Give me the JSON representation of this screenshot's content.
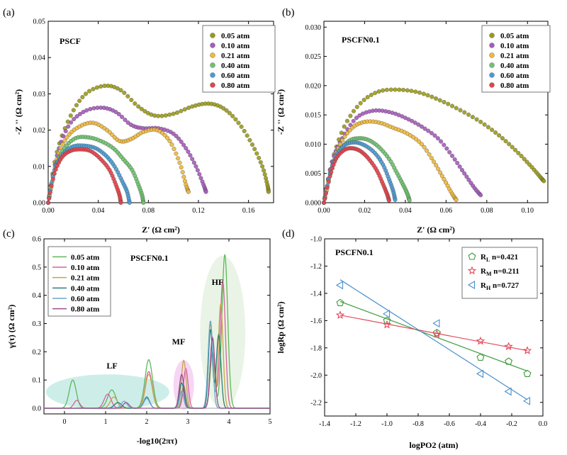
{
  "chart_data": [
    {
      "panel": "(a)",
      "type": "scatter",
      "title": "PSCF",
      "xlabel": "Z'  (Ω cm²)",
      "ylabel": "-Z ''  (Ω cm²)",
      "xlim": [
        0,
        0.18
      ],
      "ylim": [
        0,
        0.05
      ],
      "xticks": [
        0.0,
        0.04,
        0.08,
        0.12,
        0.16
      ],
      "xtick_labels": [
        "0.00",
        "0.04",
        "0.08",
        "0.12",
        "0.16"
      ],
      "yticks": [
        0.0,
        0.01,
        0.02,
        0.03,
        0.04,
        0.05
      ],
      "ytick_labels": [
        "0.00",
        "0.01",
        "0.02",
        "0.03",
        "0.04",
        "0.05"
      ],
      "legend": "top-right",
      "series": [
        {
          "name": "0.05 atm",
          "color": "#9b9b16",
          "x": [
            0.0,
            0.007,
            0.018,
            0.03,
            0.045,
            0.058,
            0.072,
            0.085,
            0.1,
            0.115,
            0.128,
            0.14,
            0.152,
            0.163,
            0.171,
            0.175,
            0.176
          ],
          "y": [
            0.0,
            0.014,
            0.024,
            0.03,
            0.0322,
            0.031,
            0.0265,
            0.024,
            0.0245,
            0.0265,
            0.0273,
            0.026,
            0.022,
            0.016,
            0.01,
            0.005,
            0.003
          ]
        },
        {
          "name": "0.10 atm",
          "color": "#a65bbd",
          "x": [
            0.0,
            0.007,
            0.016,
            0.028,
            0.042,
            0.054,
            0.066,
            0.076,
            0.088,
            0.1,
            0.11,
            0.118,
            0.124,
            0.126
          ],
          "y": [
            0.0,
            0.013,
            0.021,
            0.025,
            0.0262,
            0.025,
            0.0215,
            0.0205,
            0.0205,
            0.019,
            0.015,
            0.01,
            0.005,
            0.003
          ]
        },
        {
          "name": "0.21 atm",
          "color": "#f0b83a",
          "x": [
            0.0,
            0.007,
            0.015,
            0.025,
            0.036,
            0.047,
            0.057,
            0.066,
            0.076,
            0.087,
            0.097,
            0.105,
            0.11,
            0.112
          ],
          "y": [
            0.0,
            0.012,
            0.018,
            0.021,
            0.022,
            0.02,
            0.017,
            0.0175,
            0.0195,
            0.02,
            0.017,
            0.011,
            0.005,
            0.003
          ]
        },
        {
          "name": "0.40 atm",
          "color": "#6ec36e",
          "x": [
            0.0,
            0.006,
            0.013,
            0.022,
            0.032,
            0.042,
            0.052,
            0.06,
            0.067,
            0.072,
            0.075,
            0.076
          ],
          "y": [
            0.0,
            0.01,
            0.015,
            0.0178,
            0.018,
            0.017,
            0.015,
            0.012,
            0.009,
            0.005,
            0.002,
            0.0
          ]
        },
        {
          "name": "0.60 atm",
          "color": "#4b9bd4",
          "x": [
            0.0,
            0.005,
            0.012,
            0.02,
            0.029,
            0.038,
            0.046,
            0.053,
            0.059,
            0.063,
            0.065
          ],
          "y": [
            0.0,
            0.009,
            0.0135,
            0.0155,
            0.0157,
            0.015,
            0.013,
            0.01,
            0.006,
            0.003,
            0.0
          ]
        },
        {
          "name": "0.80 atm",
          "color": "#e8424a",
          "x": [
            0.0,
            0.005,
            0.011,
            0.018,
            0.026,
            0.034,
            0.042,
            0.049,
            0.054,
            0.057,
            0.058
          ],
          "y": [
            0.0,
            0.008,
            0.0125,
            0.0143,
            0.0147,
            0.0142,
            0.012,
            0.009,
            0.005,
            0.002,
            0.0
          ]
        }
      ]
    },
    {
      "panel": "(b)",
      "type": "scatter",
      "title": "PSCFN0.1",
      "xlabel": "Z'  (Ω cm²)",
      "ylabel": "-Z ''  (Ω cm²)",
      "xlim": [
        0,
        0.11
      ],
      "ylim": [
        0,
        0.031
      ],
      "xticks": [
        0.0,
        0.02,
        0.04,
        0.06,
        0.08,
        0.1
      ],
      "xtick_labels": [
        "0.00",
        "0.02",
        "0.04",
        "0.06",
        "0.08",
        "0.10"
      ],
      "yticks": [
        0.0,
        0.005,
        0.01,
        0.015,
        0.02,
        0.025,
        0.03
      ],
      "ytick_labels": [
        "0.000",
        "0.005",
        "0.010",
        "0.015",
        "0.020",
        "0.025",
        "0.030"
      ],
      "legend": "top-right",
      "series": [
        {
          "name": "0.05 atm",
          "color": "#9b9b16",
          "x": [
            0.0,
            0.004,
            0.01,
            0.018,
            0.027,
            0.037,
            0.047,
            0.057,
            0.067,
            0.077,
            0.086,
            0.094,
            0.101,
            0.106,
            0.108
          ],
          "y": [
            0.0,
            0.007,
            0.013,
            0.017,
            0.019,
            0.0193,
            0.0188,
            0.0175,
            0.0158,
            0.0138,
            0.0115,
            0.009,
            0.0065,
            0.0045,
            0.0037
          ]
        },
        {
          "name": "0.10 atm",
          "color": "#a65bbd",
          "x": [
            0.0,
            0.004,
            0.009,
            0.016,
            0.024,
            0.032,
            0.04,
            0.048,
            0.056,
            0.063,
            0.069,
            0.074,
            0.077
          ],
          "y": [
            0.0,
            0.007,
            0.011,
            0.0145,
            0.0157,
            0.0155,
            0.0145,
            0.013,
            0.011,
            0.008,
            0.005,
            0.0025,
            0.0013
          ]
        },
        {
          "name": "0.21 atm",
          "color": "#f0b83a",
          "x": [
            0.0,
            0.004,
            0.008,
            0.014,
            0.02,
            0.027,
            0.034,
            0.041,
            0.048,
            0.054,
            0.059,
            0.063,
            0.065
          ],
          "y": [
            0.0,
            0.006,
            0.01,
            0.0128,
            0.0138,
            0.0137,
            0.0128,
            0.0118,
            0.01,
            0.007,
            0.004,
            0.0015,
            0.0005
          ]
        },
        {
          "name": "0.40 atm",
          "color": "#6ec36e",
          "x": [
            0.0,
            0.003,
            0.007,
            0.012,
            0.017,
            0.022,
            0.027,
            0.032,
            0.036,
            0.039,
            0.041,
            0.042
          ],
          "y": [
            0.0,
            0.005,
            0.0085,
            0.0105,
            0.011,
            0.0107,
            0.0095,
            0.0075,
            0.005,
            0.003,
            0.0015,
            0.0004
          ]
        },
        {
          "name": "0.60 atm",
          "color": "#4b9bd4",
          "x": [
            0.0,
            0.003,
            0.006,
            0.01,
            0.015,
            0.02,
            0.025,
            0.029,
            0.032,
            0.034,
            0.035
          ],
          "y": [
            0.0,
            0.005,
            0.008,
            0.0098,
            0.0103,
            0.0098,
            0.0085,
            0.0065,
            0.004,
            0.002,
            0.0005
          ]
        },
        {
          "name": "0.80 atm",
          "color": "#e8424a",
          "x": [
            0.0,
            0.003,
            0.006,
            0.01,
            0.014,
            0.018,
            0.022,
            0.026,
            0.029,
            0.031,
            0.032
          ],
          "y": [
            0.0,
            0.0045,
            0.0075,
            0.009,
            0.0093,
            0.0088,
            0.0075,
            0.0055,
            0.0032,
            0.0015,
            0.0004
          ]
        }
      ]
    },
    {
      "panel": "(c)",
      "type": "line",
      "title": "PSCFN0.1",
      "xlabel": "-log10(2πτ)",
      "ylabel": "γ(τ)  (Ω  cm²)",
      "xlim": [
        -0.5,
        5
      ],
      "ylim": [
        -0.02,
        0.6
      ],
      "xticks": [
        0,
        1,
        2,
        3,
        4,
        5
      ],
      "xtick_labels": [
        "0",
        "1",
        "2",
        "3",
        "4",
        "5"
      ],
      "yticks": [
        0.0,
        0.1,
        0.2,
        0.3,
        0.4,
        0.5,
        0.6
      ],
      "ytick_labels": [
        "0.0",
        "0.1",
        "0.2",
        "0.3",
        "0.4",
        "0.5",
        "0.6"
      ],
      "legend": "top-left",
      "regions": [
        {
          "label": "LF",
          "x_range": [
            -0.45,
            2.55
          ],
          "y_range": [
            -0.005,
            0.12
          ],
          "color": "#b8e6e0"
        },
        {
          "label": "MF",
          "x_range": [
            2.65,
            3.15
          ],
          "y_range": [
            -0.005,
            0.17
          ],
          "color": "#f2c4f0"
        },
        {
          "label": "HF",
          "x_range": [
            3.3,
            4.4
          ],
          "y_range": [
            -0.005,
            0.54
          ],
          "color": "#dff0dc"
        }
      ],
      "series": [
        {
          "name": "0.05 atm",
          "color": "#5fb85a",
          "peaks": [
            [
              0.2,
              0.1,
              0.12
            ],
            [
              1.15,
              0.065,
              0.14
            ],
            [
              2.05,
              0.172,
              0.13
            ],
            [
              2.9,
              0.08,
              0.07
            ],
            [
              3.6,
              0.2,
              0.08
            ],
            [
              3.9,
              0.545,
              0.1
            ]
          ]
        },
        {
          "name": "0.10 atm",
          "color": "#d7629a",
          "peaks": [
            [
              0.3,
              0.028,
              0.1
            ],
            [
              1.05,
              0.05,
              0.12
            ],
            [
              2.05,
              0.13,
              0.12
            ],
            [
              2.95,
              0.14,
              0.08
            ],
            [
              3.6,
              0.25,
              0.08
            ],
            [
              3.85,
              0.45,
              0.09
            ]
          ]
        },
        {
          "name": "0.21 atm",
          "color": "#c9a34a",
          "peaks": [
            [
              1.2,
              0.04,
              0.12
            ],
            [
              2.05,
              0.12,
              0.12
            ],
            [
              2.9,
              0.17,
              0.08
            ],
            [
              3.55,
              0.3,
              0.08
            ],
            [
              3.8,
              0.37,
              0.08
            ]
          ]
        },
        {
          "name": "0.40 atm",
          "color": "#2c7f7a",
          "peaks": [
            [
              1.3,
              0.02,
              0.12
            ],
            [
              2.0,
              0.04,
              0.1
            ],
            [
              2.85,
              0.09,
              0.08
            ],
            [
              3.55,
              0.28,
              0.07
            ],
            [
              3.75,
              0.26,
              0.08
            ]
          ]
        },
        {
          "name": "0.60 atm",
          "color": "#6aa7cf",
          "peaks": [
            [
              1.45,
              0.025,
              0.1
            ],
            [
              2.0,
              0.035,
              0.1
            ],
            [
              2.85,
              0.06,
              0.07
            ],
            [
              3.55,
              0.31,
              0.08
            ]
          ]
        },
        {
          "name": "0.80 atm",
          "color": "#9b4f8f",
          "peaks": [
            [
              1.5,
              0.02,
              0.1
            ],
            [
              2.85,
              0.12,
              0.08
            ],
            [
              3.6,
              0.25,
              0.08
            ]
          ]
        }
      ],
      "annotations": [
        "LF",
        "MF",
        "HF"
      ]
    },
    {
      "panel": "(d)",
      "type": "scatter",
      "title": "PSCFN0.1",
      "xlabel": "logPO2 (atm)",
      "ylabel": "logRp  (Ω  cm²)",
      "xlim": [
        -1.4,
        0.0
      ],
      "ylim": [
        -2.3,
        -1.0
      ],
      "xticks": [
        -1.4,
        -1.2,
        -1.0,
        -0.8,
        -0.6,
        -0.4,
        -0.2,
        0.0
      ],
      "xtick_labels": [
        "-1.4",
        "-1.2",
        "-1.0",
        "-0.8",
        "-0.6",
        "-0.4",
        "-0.2",
        "0.0"
      ],
      "yticks": [
        -2.2,
        -2.0,
        -1.8,
        -1.6,
        -1.4,
        -1.2,
        -1.0
      ],
      "ytick_labels": [
        "-2.2",
        "-2.0",
        "-1.8",
        "-1.6",
        "-1.4",
        "-1.2",
        "-1.0"
      ],
      "legend": "top-right",
      "series": [
        {
          "name": "R",
          "sub": "L",
          "note": " n=0.421",
          "marker": "pentagon",
          "color": "#3a9a3a",
          "x": [
            -1.3,
            -1.0,
            -0.68,
            -0.4,
            -0.22,
            -0.1
          ],
          "y": [
            -1.47,
            -1.6,
            -1.69,
            -1.87,
            -1.9,
            -1.99
          ],
          "fit": {
            "x": [
              -1.3,
              -0.1
            ],
            "y": [
              -1.46,
              -1.97
            ]
          }
        },
        {
          "name": "R",
          "sub": "M",
          "note": " n=0.211",
          "marker": "star",
          "color": "#e04a5a",
          "x": [
            -1.3,
            -1.0,
            -0.68,
            -0.4,
            -0.22,
            -0.1
          ],
          "y": [
            -1.56,
            -1.63,
            -1.7,
            -1.75,
            -1.79,
            -1.82
          ],
          "fit": {
            "x": [
              -1.3,
              -0.1
            ],
            "y": [
              -1.56,
              -1.82
            ]
          }
        },
        {
          "name": "R",
          "sub": "H",
          "note": " n=0.727",
          "marker": "triangle-left",
          "color": "#4a8fcc",
          "x": [
            -1.3,
            -1.0,
            -0.68,
            -0.4,
            -0.22,
            -0.1
          ],
          "y": [
            -1.34,
            -1.55,
            -1.62,
            -1.99,
            -2.12,
            -2.19
          ],
          "fit": {
            "x": [
              -1.3,
              -0.1
            ],
            "y": [
              -1.3,
              -2.18
            ]
          }
        }
      ]
    }
  ]
}
